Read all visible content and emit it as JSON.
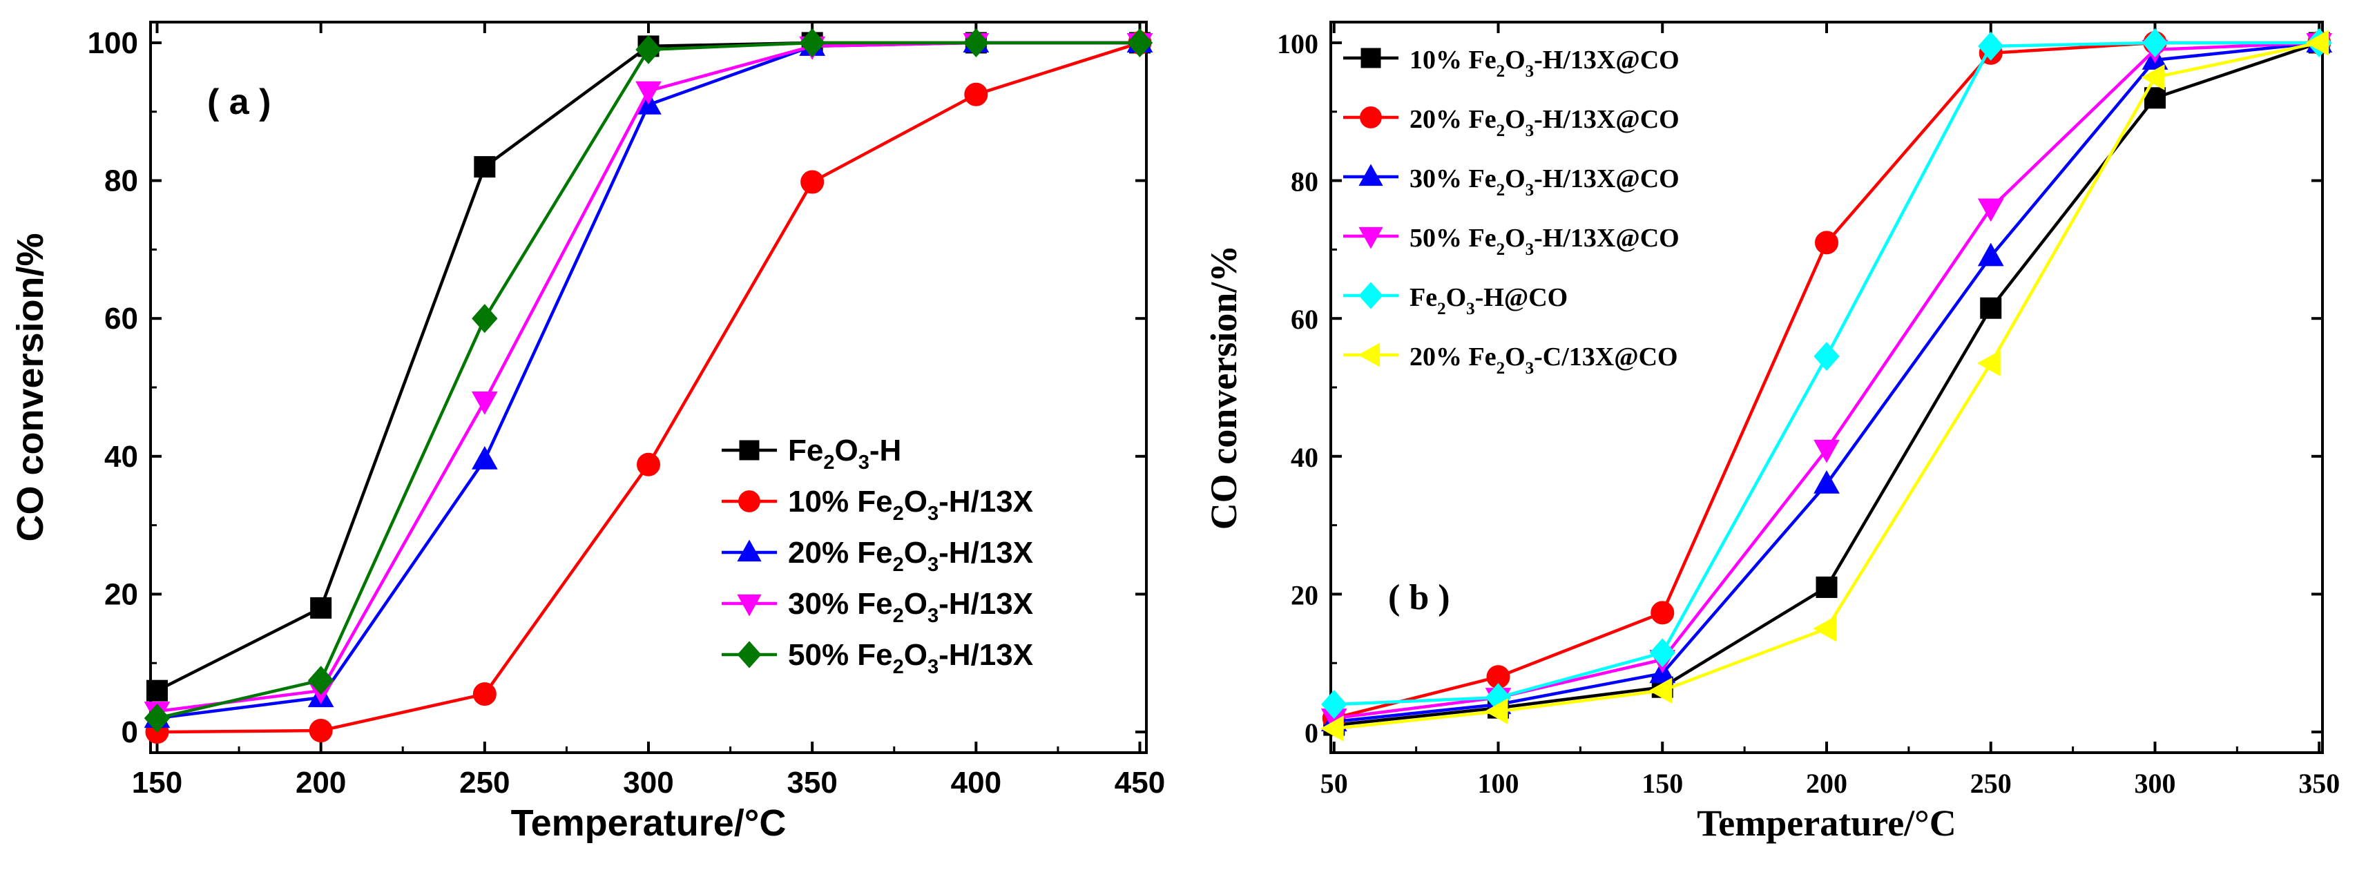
{
  "figure": {
    "panels_count": 2
  },
  "chart_data": [
    {
      "type": "line",
      "panel_label": "( a )",
      "title": "",
      "xlabel": "Temperature/°C",
      "ylabel": "CO conversion/%",
      "xlim": [
        148,
        452
      ],
      "ylim": [
        -3,
        103
      ],
      "x_ticks": [
        150,
        200,
        250,
        300,
        350,
        400,
        450
      ],
      "y_ticks": [
        0,
        20,
        40,
        60,
        80,
        100
      ],
      "legend_position": "bottom-right",
      "font": "sans",
      "series": [
        {
          "name": "Fe2O3-H",
          "label_parts": [
            "Fe",
            "2",
            "O",
            "3",
            "-H"
          ],
          "color": "#000000",
          "marker": "square",
          "x": [
            150,
            200,
            250,
            300,
            350,
            400,
            450
          ],
          "y": [
            6,
            18,
            82,
            99.5,
            100,
            100,
            100
          ]
        },
        {
          "name": "10% Fe2O3-H/13X",
          "label_parts": [
            "10% Fe",
            "2",
            "O",
            "3",
            "-H/13X"
          ],
          "color": "#ff0000",
          "marker": "circle",
          "x": [
            150,
            200,
            250,
            300,
            350,
            400,
            450
          ],
          "y": [
            0,
            0.2,
            5.5,
            38.8,
            79.8,
            92.5,
            100
          ]
        },
        {
          "name": "20% Fe2O3-H/13X",
          "label_parts": [
            "20% Fe",
            "2",
            "O",
            "3",
            "-H/13X"
          ],
          "color": "#0000ff",
          "marker": "triangle-up",
          "x": [
            150,
            200,
            250,
            300,
            350,
            400,
            450
          ],
          "y": [
            2,
            5,
            39.5,
            91,
            99.5,
            100,
            100
          ]
        },
        {
          "name": "30% Fe2O3-H/13X",
          "label_parts": [
            "30% Fe",
            "2",
            "O",
            "3",
            "-H/13X"
          ],
          "color": "#ff00ff",
          "marker": "triangle-down",
          "x": [
            150,
            200,
            250,
            300,
            350,
            400,
            450
          ],
          "y": [
            3,
            6,
            48,
            93,
            99.5,
            100,
            100
          ]
        },
        {
          "name": "50% Fe2O3-H/13X",
          "label_parts": [
            "50% Fe",
            "2",
            "O",
            "3",
            "-H/13X"
          ],
          "color": "#007700",
          "marker": "diamond",
          "x": [
            150,
            200,
            250,
            300,
            350,
            400,
            450
          ],
          "y": [
            2,
            7.5,
            60,
            99,
            100,
            100,
            100
          ]
        }
      ]
    },
    {
      "type": "line",
      "panel_label": "( b )",
      "title": "",
      "xlabel": "Temperature/°C",
      "ylabel": "CO conversion/%",
      "xlim": [
        49,
        351
      ],
      "ylim": [
        -3,
        103
      ],
      "x_ticks": [
        50,
        100,
        150,
        200,
        250,
        300,
        350
      ],
      "y_ticks": [
        0,
        20,
        40,
        60,
        80,
        100
      ],
      "legend_position": "top-left",
      "font": "serif",
      "series": [
        {
          "name": "10% Fe2O3-H/13X@CO",
          "label_parts": [
            "10% Fe",
            "2",
            "O",
            "3",
            "-H/13X@CO"
          ],
          "color": "#000000",
          "marker": "square",
          "x": [
            50,
            100,
            150,
            200,
            250,
            300,
            350
          ],
          "y": [
            1,
            3.5,
            6.5,
            21,
            61.5,
            92,
            100
          ]
        },
        {
          "name": "20% Fe2O3-H/13X@CO",
          "label_parts": [
            "20% Fe",
            "2",
            "O",
            "3",
            "-H/13X@CO"
          ],
          "color": "#ff0000",
          "marker": "circle",
          "x": [
            50,
            100,
            150,
            200,
            250,
            300,
            350
          ],
          "y": [
            2,
            8,
            17.3,
            71,
            98.5,
            100,
            100
          ]
        },
        {
          "name": "30% Fe2O3-H/13X@CO",
          "label_parts": [
            "30% Fe",
            "2",
            "O",
            "3",
            "-H/13X@CO"
          ],
          "color": "#0000ff",
          "marker": "triangle-up",
          "x": [
            50,
            100,
            150,
            200,
            250,
            300,
            350
          ],
          "y": [
            1.5,
            4,
            8.5,
            36,
            69,
            97.5,
            100
          ]
        },
        {
          "name": "50% Fe2O3-H/13X@CO",
          "label_parts": [
            "50% Fe",
            "2",
            "O",
            "3",
            "-H/13X@CO"
          ],
          "color": "#ff00ff",
          "marker": "triangle-down",
          "x": [
            50,
            100,
            150,
            200,
            250,
            300,
            350
          ],
          "y": [
            2,
            5,
            10.5,
            41,
            76,
            99,
            100
          ]
        },
        {
          "name": "Fe2O3-H@CO",
          "label_parts": [
            "Fe",
            "2",
            "O",
            "3",
            "-H@CO"
          ],
          "color": "#00ffff",
          "marker": "diamond",
          "x": [
            50,
            100,
            150,
            200,
            250,
            300,
            350
          ],
          "y": [
            4,
            5,
            11.5,
            54.5,
            99.5,
            100,
            100
          ]
        },
        {
          "name": "20% Fe2O3-C/13X@CO",
          "label_parts": [
            "20% Fe",
            "2",
            "O",
            "3",
            "-C/13X@CO"
          ],
          "color": "#ffff00",
          "marker": "triangle-left",
          "x": [
            50,
            100,
            150,
            200,
            250,
            300,
            350
          ],
          "y": [
            0.5,
            3,
            6,
            15,
            53.5,
            95,
            100
          ]
        }
      ]
    }
  ]
}
